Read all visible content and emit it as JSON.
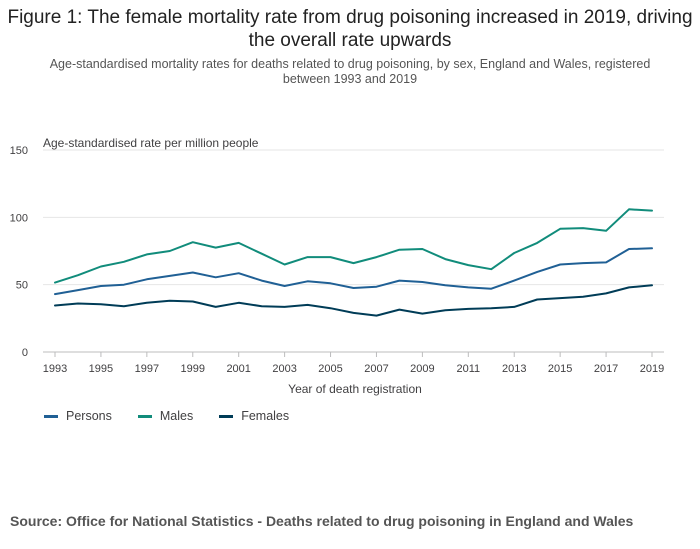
{
  "title": "Figure 1: The female mortality rate from drug poisoning increased in 2019, driving the overall rate upwards",
  "subtitle": "Age-standardised mortality rates for deaths related to drug poisoning, by sex, England and Wales, registered between 1993 and 2019",
  "source": "Source: Office for National Statistics - Deaths related to drug poisoning in England and Wales",
  "chart_data": {
    "type": "line",
    "ylabel": "Age-standardised rate per million people",
    "xlabel": "Year of death registration",
    "ylim": [
      0,
      150
    ],
    "yticks": [
      "0",
      "50",
      "100",
      "150"
    ],
    "xticks": [
      "1993",
      "1995",
      "1997",
      "1999",
      "2001",
      "2003",
      "2005",
      "2007",
      "2009",
      "2011",
      "2013",
      "2015",
      "2017",
      "2019"
    ],
    "x": [
      1993,
      1994,
      1995,
      1996,
      1997,
      1998,
      1999,
      2000,
      2001,
      2002,
      2003,
      2004,
      2005,
      2006,
      2007,
      2008,
      2009,
      2010,
      2011,
      2012,
      2013,
      2014,
      2015,
      2016,
      2017,
      2018,
      2019
    ],
    "grid": true,
    "legend_position": "bottom-left",
    "series": [
      {
        "name": "Persons",
        "color": "#206095",
        "values": [
          43,
          46,
          49,
          50,
          54,
          56.5,
          59,
          55.5,
          58.5,
          53,
          49,
          52.5,
          51,
          47.5,
          48.5,
          53,
          52,
          49.5,
          48,
          47,
          53,
          59.5,
          65,
          66,
          66.5,
          76.5,
          77
        ]
      },
      {
        "name": "Males",
        "color": "#118C7B",
        "values": [
          51.5,
          57,
          63.5,
          67,
          72.5,
          75,
          81.5,
          77.5,
          81,
          73,
          65,
          70.5,
          70.5,
          66,
          70.5,
          76,
          76.5,
          69,
          64.5,
          61.5,
          73.5,
          81,
          91.5,
          92,
          90,
          106,
          105
        ]
      },
      {
        "name": "Females",
        "color": "#003C57",
        "values": [
          34.5,
          36,
          35.5,
          34,
          36.5,
          38,
          37.5,
          33.5,
          36.5,
          34,
          33.5,
          35,
          32.5,
          29,
          27,
          31.5,
          28.5,
          31,
          32,
          32.5,
          33.5,
          39,
          40,
          41,
          43.5,
          48,
          49.5
        ]
      }
    ]
  }
}
